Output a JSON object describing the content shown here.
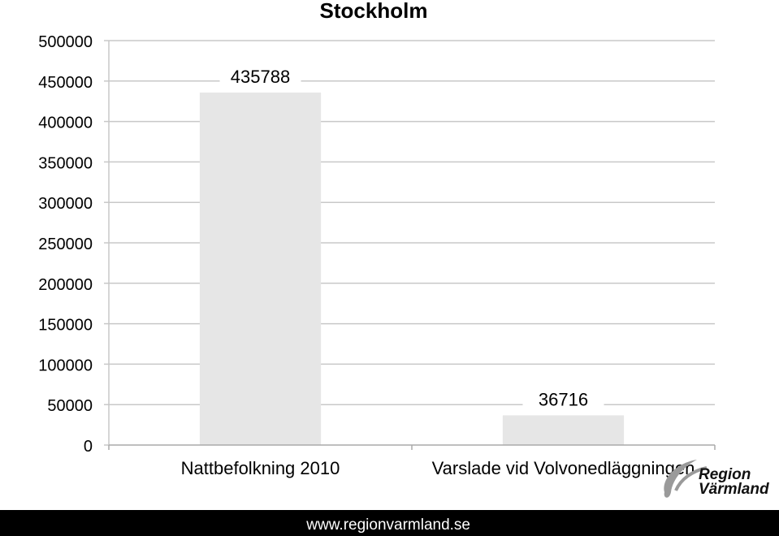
{
  "chart_data": {
    "type": "bar",
    "title": "Stockholm",
    "categories": [
      "Nattbefolkning 2010",
      "Varslade vid Volvonedläggningen"
    ],
    "values": [
      435788,
      36716
    ],
    "data_labels": [
      "435788",
      "36716"
    ],
    "ylim": [
      0,
      500000
    ],
    "y_ticks": [
      0,
      50000,
      100000,
      150000,
      200000,
      250000,
      300000,
      350000,
      400000,
      450000,
      500000
    ],
    "y_tick_labels": [
      "0",
      "50000",
      "100000",
      "150000",
      "200000",
      "250000",
      "300000",
      "350000",
      "400000",
      "450000",
      "500000"
    ],
    "grid": true,
    "bar_color": "#e6e6e6",
    "grid_color": "#c8c8c8"
  },
  "logo": {
    "line1": "Region",
    "line2": "Värmland",
    "color": "#9a9a9a"
  },
  "footer": {
    "url": "www.regionvarmland.se",
    "background": "#000000",
    "text_color": "#ffffff"
  }
}
